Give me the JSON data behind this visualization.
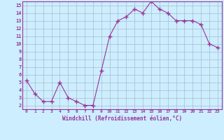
{
  "x": [
    0,
    1,
    2,
    3,
    4,
    5,
    6,
    7,
    8,
    9,
    10,
    11,
    12,
    13,
    14,
    15,
    16,
    17,
    18,
    19,
    20,
    21,
    22,
    23
  ],
  "y": [
    5.2,
    3.5,
    2.5,
    2.5,
    5.0,
    3.0,
    2.5,
    2.0,
    2.0,
    6.5,
    11.0,
    13.0,
    13.5,
    14.5,
    14.0,
    15.5,
    14.5,
    14.0,
    13.0,
    13.0,
    13.0,
    12.5,
    10.0,
    9.5
  ],
  "xlabel": "Windchill (Refroidissement éolien,°C)",
  "ylim": [
    2,
    15
  ],
  "yticks": [
    2,
    3,
    4,
    5,
    6,
    7,
    8,
    9,
    10,
    11,
    12,
    13,
    14,
    15
  ],
  "xticks": [
    0,
    1,
    2,
    3,
    4,
    5,
    6,
    7,
    8,
    9,
    10,
    11,
    12,
    13,
    14,
    15,
    16,
    17,
    18,
    19,
    20,
    21,
    22,
    23
  ],
  "line_color": "#993399",
  "marker": "+",
  "marker_size": 4,
  "bg_color": "#cceeff",
  "grid_color": "#aabbcc",
  "border_color": "#993399",
  "label_color": "#993399",
  "tick_color": "#993399"
}
